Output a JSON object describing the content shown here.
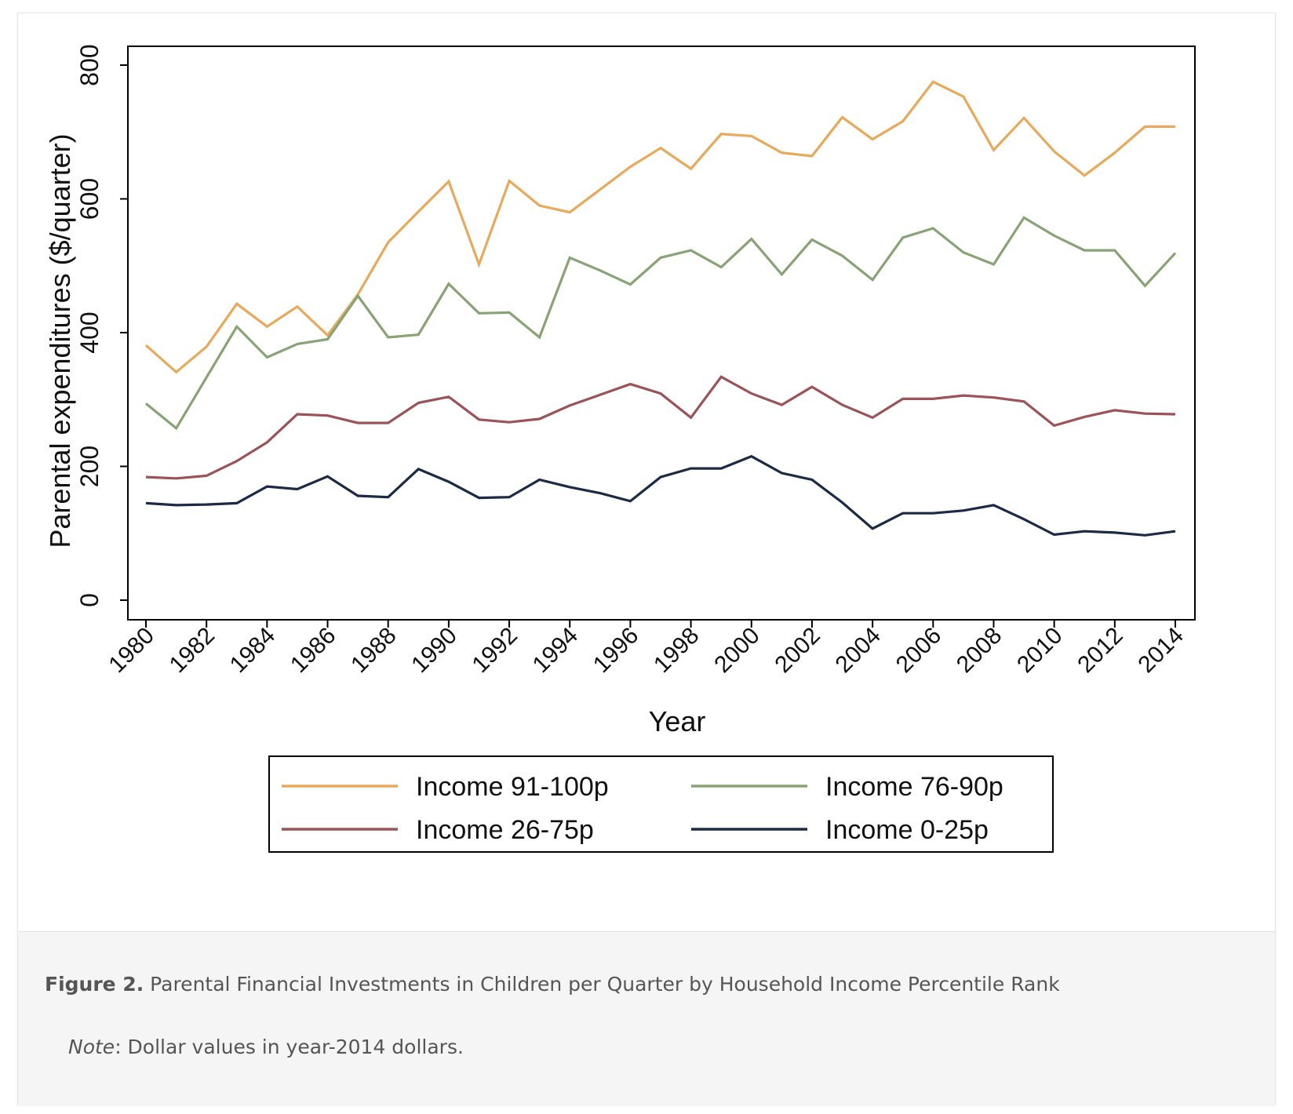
{
  "chart_data": {
    "type": "line",
    "xlabel": "Year",
    "ylabel": "Parental expenditures ($/quarter)",
    "xlim": [
      1980,
      2014
    ],
    "ylim": [
      0,
      800
    ],
    "yticks": [
      0,
      200,
      400,
      600,
      800
    ],
    "xticks": [
      1980,
      1982,
      1984,
      1986,
      1988,
      1990,
      1992,
      1994,
      1996,
      1998,
      2000,
      2002,
      2004,
      2006,
      2008,
      2010,
      2012,
      2014
    ],
    "grid": false,
    "legend": "bottom",
    "x": [
      1980,
      1981,
      1982,
      1983,
      1984,
      1985,
      1986,
      1987,
      1988,
      1989,
      1990,
      1991,
      1992,
      1993,
      1994,
      1995,
      1996,
      1997,
      1998,
      1999,
      2000,
      2001,
      2002,
      2003,
      2004,
      2005,
      2006,
      2007,
      2008,
      2009,
      2010,
      2011,
      2012,
      2013,
      2014
    ],
    "series": [
      {
        "name": "Income 91-100p",
        "color": "#e8a95b",
        "values": [
          381,
          341,
          379,
          443,
          409,
          439,
          396,
          457,
          535,
          581,
          626,
          502,
          627,
          590,
          580,
          614,
          648,
          676,
          645,
          697,
          694,
          669,
          664,
          722,
          689,
          716,
          775,
          753,
          673,
          721,
          671,
          635,
          669,
          708,
          708
        ]
      },
      {
        "name": "Income 76-90p",
        "color": "#88a374",
        "values": [
          294,
          257,
          333,
          409,
          363,
          383,
          390,
          455,
          393,
          397,
          473,
          429,
          430,
          393,
          512,
          493,
          472,
          512,
          523,
          498,
          540,
          487,
          539,
          515,
          479,
          542,
          556,
          520,
          502,
          572,
          545,
          523,
          523,
          470,
          519
        ]
      },
      {
        "name": "Income 26-75p",
        "color": "#9b5358",
        "values": [
          184,
          182,
          186,
          208,
          236,
          278,
          276,
          265,
          265,
          295,
          304,
          270,
          266,
          271,
          291,
          307,
          323,
          309,
          273,
          334,
          309,
          292,
          319,
          292,
          273,
          301,
          301,
          306,
          303,
          297,
          261,
          274,
          284,
          279,
          278
        ]
      },
      {
        "name": "Income 0-25p",
        "color": "#1b2b46",
        "values": [
          145,
          142,
          143,
          145,
          170,
          166,
          185,
          156,
          154,
          196,
          177,
          153,
          154,
          180,
          169,
          160,
          148,
          184,
          197,
          197,
          215,
          190,
          180,
          146,
          107,
          130,
          130,
          134,
          142,
          121,
          98,
          103,
          101,
          97,
          103
        ]
      }
    ]
  },
  "caption": {
    "label": "Figure 2.",
    "text": " Parental Financial Investments in Children per Quarter by Household Income Percentile Rank"
  },
  "note": {
    "label": "Note",
    "text": ": Dollar values in year-2014 dollars."
  }
}
